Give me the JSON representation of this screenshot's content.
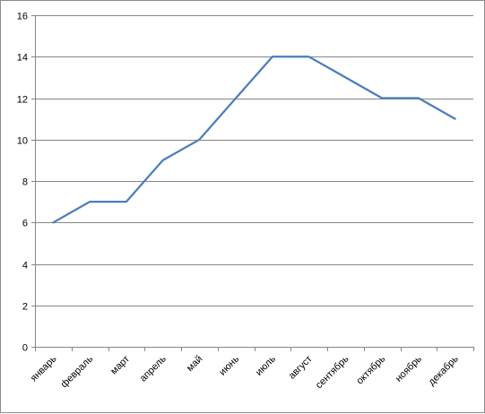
{
  "chart_data": {
    "type": "line",
    "categories": [
      "январь",
      "февраль",
      "март",
      "апрель",
      "май",
      "июнь",
      "июль",
      "август",
      "сентябрь",
      "октябрь",
      "ноябрь",
      "декабрь"
    ],
    "series": [
      {
        "values": [
          6,
          7,
          7,
          9,
          10,
          12,
          14,
          14,
          13,
          12,
          12,
          11
        ],
        "color": "#4a7ebb"
      }
    ],
    "yticks": [
      0,
      2,
      4,
      6,
      8,
      10,
      12,
      14,
      16
    ],
    "ylim": [
      0,
      16
    ],
    "title": "",
    "xlabel": "",
    "ylabel": "",
    "grid": true,
    "legend": "none"
  }
}
